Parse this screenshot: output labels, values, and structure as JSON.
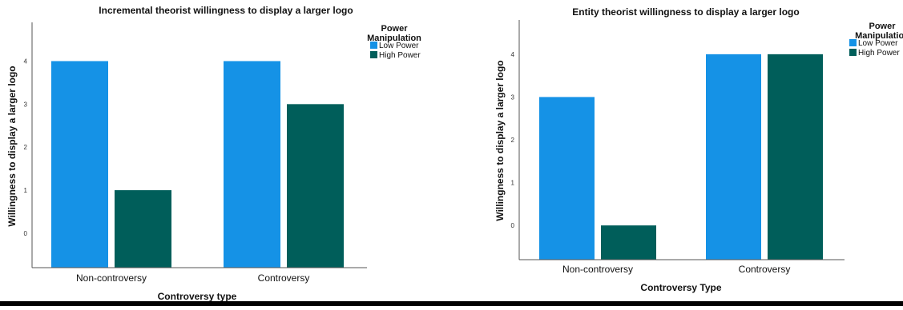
{
  "chart_data": [
    {
      "type": "bar",
      "title": "Incremental theorist willingness to display a larger logo",
      "xlabel": "Controversy type",
      "ylabel": "Willingness to display a larger logo",
      "categories": [
        "Non-controversy",
        "Controversy"
      ],
      "yticks": [
        "0",
        "1",
        "2",
        "3",
        "4"
      ],
      "ylim": [
        -0.8,
        4.9
      ],
      "grid": false,
      "legend": {
        "title_line1": "Power",
        "title_line2": "Manipulation",
        "position": "top-right"
      },
      "series": [
        {
          "name": "Low Power",
          "color": "#1592e6",
          "values": [
            4,
            4
          ]
        },
        {
          "name": "High Power",
          "color": "#005e5a",
          "values": [
            1,
            3
          ]
        }
      ]
    },
    {
      "type": "bar",
      "title": "Entity theorist willingness to display a larger logo",
      "xlabel": "Controversy Type",
      "ylabel": "Willingness to display a larger logo",
      "categories": [
        "Non-controversy",
        "Controversy"
      ],
      "yticks": [
        "0",
        "1",
        "2",
        "3",
        "4"
      ],
      "ylim": [
        -0.8,
        4.8
      ],
      "grid": false,
      "legend": {
        "title_line1": "Power",
        "title_line2": "Manipulation",
        "position": "top-right"
      },
      "series": [
        {
          "name": "Low Power",
          "color": "#1592e6",
          "values": [
            3,
            4
          ]
        },
        {
          "name": "High Power",
          "color": "#005e5a",
          "values": [
            0,
            4
          ]
        }
      ]
    }
  ]
}
